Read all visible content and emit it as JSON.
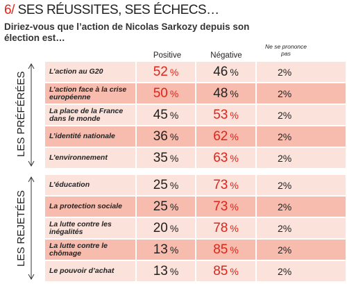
{
  "header": {
    "number": "6/",
    "title": "SES RÉUSSITES, SES ÉCHECS…",
    "question": "Diriez-vous que l’action de Nicolas Sarkozy depuis son élection est…"
  },
  "table": {
    "columns": [
      "Positive",
      "Négative",
      "Ne se prononce pas"
    ],
    "unit": "%",
    "groups": [
      {
        "label": "LES PRÉFÉRÉES",
        "rows": [
          {
            "label": "L’action au G20",
            "positive": 52,
            "negative": 46,
            "no_opinion": 2
          },
          {
            "label": "L’action face à la crise européenne",
            "positive": 50,
            "negative": 48,
            "no_opinion": 2
          },
          {
            "label": "La place de la France dans le monde",
            "positive": 45,
            "negative": 53,
            "no_opinion": 2
          },
          {
            "label": "L’identité nationale",
            "positive": 36,
            "negative": 62,
            "no_opinion": 2
          },
          {
            "label": "L’environnement",
            "positive": 35,
            "negative": 63,
            "no_opinion": 2
          }
        ]
      },
      {
        "label": "LES REJETÉES",
        "rows": [
          {
            "label": "L’éducation",
            "positive": 25,
            "negative": 73,
            "no_opinion": 2
          },
          {
            "label": "La protection sociale",
            "positive": 25,
            "negative": 73,
            "no_opinion": 2
          },
          {
            "label": "La lutte contre les inégalités",
            "positive": 20,
            "negative": 78,
            "no_opinion": 2
          },
          {
            "label": "La lutte contre le chômage",
            "positive": 13,
            "negative": 85,
            "no_opinion": 2
          },
          {
            "label": "Le pouvoir d’achat",
            "positive": 13,
            "negative": 85,
            "no_opinion": 2
          }
        ]
      }
    ]
  }
}
